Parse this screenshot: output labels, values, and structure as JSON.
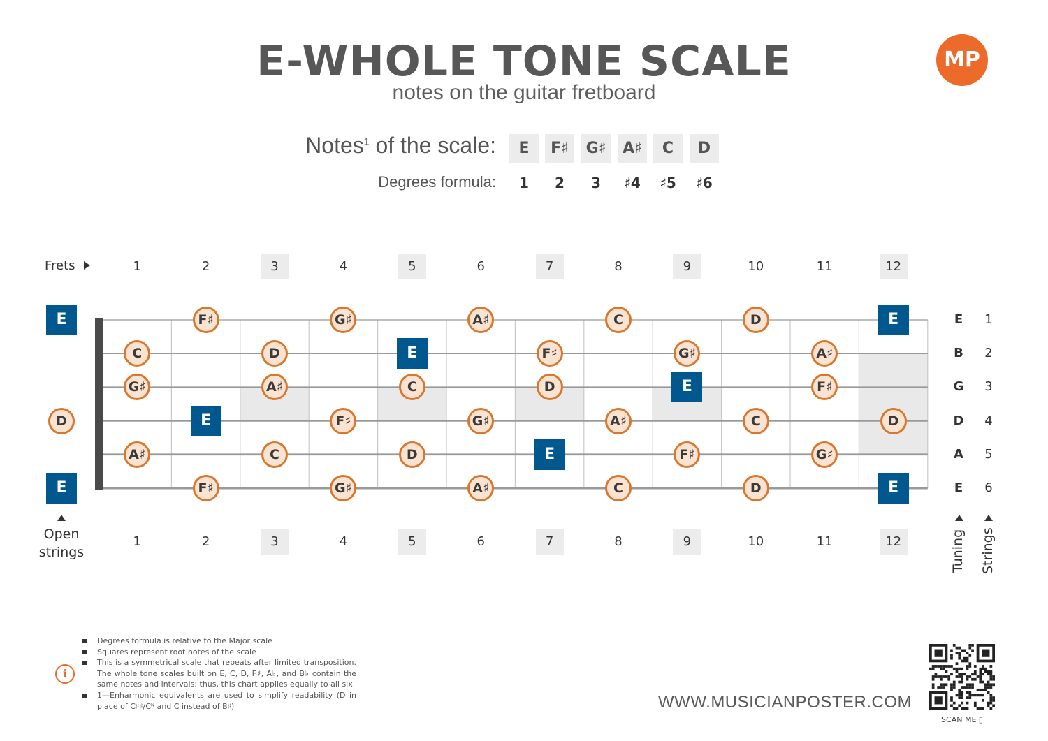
{
  "header": {
    "title": "E-WHOLE TONE SCALE",
    "subtitle": "notes on the guitar fretboard",
    "logo_text": "MP"
  },
  "scale": {
    "notes_label": "Notes",
    "notes_sup": "1",
    "notes_label_suffix": " of the scale:",
    "notes": [
      "E",
      "F♯",
      "G♯",
      "A♯",
      "C",
      "D"
    ],
    "degrees_label": "Degrees formula:",
    "degrees": [
      "1",
      "2",
      "3",
      "♯4",
      "♯5",
      "♯6"
    ]
  },
  "fretboard": {
    "frets_label": "Frets",
    "fret_numbers": [
      "1",
      "2",
      "3",
      "4",
      "5",
      "6",
      "7",
      "8",
      "9",
      "10",
      "11",
      "12"
    ],
    "marker_frets": [
      3,
      5,
      7,
      9,
      12
    ],
    "open_strings_label_1": "Open",
    "open_strings_label_2": "strings",
    "tuning": [
      "E",
      "B",
      "G",
      "D",
      "A",
      "E"
    ],
    "string_numbers": [
      "1",
      "2",
      "3",
      "4",
      "5",
      "6"
    ],
    "tuning_label": "Tuning",
    "strings_label": "Strings",
    "colors": {
      "root": "#00588f",
      "note_fill": "#fbe3d2",
      "note_border": "#d8782f",
      "accent": "#ec6a2a"
    },
    "strings": [
      {
        "string": 1,
        "notes": [
          {
            "fret": 0,
            "note": "E",
            "root": true
          },
          {
            "fret": 2,
            "note": "F♯"
          },
          {
            "fret": 4,
            "note": "G♯"
          },
          {
            "fret": 6,
            "note": "A♯"
          },
          {
            "fret": 8,
            "note": "C"
          },
          {
            "fret": 10,
            "note": "D"
          },
          {
            "fret": 12,
            "note": "E",
            "root": true
          }
        ]
      },
      {
        "string": 2,
        "notes": [
          {
            "fret": 1,
            "note": "C"
          },
          {
            "fret": 3,
            "note": "D"
          },
          {
            "fret": 5,
            "note": "E",
            "root": true
          },
          {
            "fret": 7,
            "note": "F♯"
          },
          {
            "fret": 9,
            "note": "G♯"
          },
          {
            "fret": 11,
            "note": "A♯"
          }
        ]
      },
      {
        "string": 3,
        "notes": [
          {
            "fret": 1,
            "note": "G♯"
          },
          {
            "fret": 3,
            "note": "A♯"
          },
          {
            "fret": 5,
            "note": "C"
          },
          {
            "fret": 7,
            "note": "D"
          },
          {
            "fret": 9,
            "note": "E",
            "root": true
          },
          {
            "fret": 11,
            "note": "F♯"
          }
        ]
      },
      {
        "string": 4,
        "notes": [
          {
            "fret": 0,
            "note": "D"
          },
          {
            "fret": 2,
            "note": "E",
            "root": true
          },
          {
            "fret": 4,
            "note": "F♯"
          },
          {
            "fret": 6,
            "note": "G♯"
          },
          {
            "fret": 8,
            "note": "A♯"
          },
          {
            "fret": 10,
            "note": "C"
          },
          {
            "fret": 12,
            "note": "D"
          }
        ]
      },
      {
        "string": 5,
        "notes": [
          {
            "fret": 1,
            "note": "A♯"
          },
          {
            "fret": 3,
            "note": "C"
          },
          {
            "fret": 5,
            "note": "D"
          },
          {
            "fret": 7,
            "note": "E",
            "root": true
          },
          {
            "fret": 9,
            "note": "F♯"
          },
          {
            "fret": 11,
            "note": "G♯"
          }
        ]
      },
      {
        "string": 6,
        "notes": [
          {
            "fret": 0,
            "note": "E",
            "root": true
          },
          {
            "fret": 2,
            "note": "F♯"
          },
          {
            "fret": 4,
            "note": "G♯"
          },
          {
            "fret": 6,
            "note": "A♯"
          },
          {
            "fret": 8,
            "note": "C"
          },
          {
            "fret": 10,
            "note": "D"
          },
          {
            "fret": 12,
            "note": "E",
            "root": true
          }
        ]
      }
    ]
  },
  "footnotes": [
    "Degrees formula is relative to the Major scale",
    "Squares represent root notes of the scale",
    "This is a symmetrical scale that repeats after limited transposition. The whole tone scales built on E, C, D, F♯, A♭, and B♭ contain the same notes and intervals; thus, this chart applies equally to all six",
    "1—Enharmonic equivalents are used to simplify readability (D in place of C♯♯/Cᴺ and C instead of  B♯)"
  ],
  "footer": {
    "info_icon": "i",
    "website": "WWW.MUSICIANPOSTER.COM",
    "scan_me": "SCAN ME ▯"
  }
}
